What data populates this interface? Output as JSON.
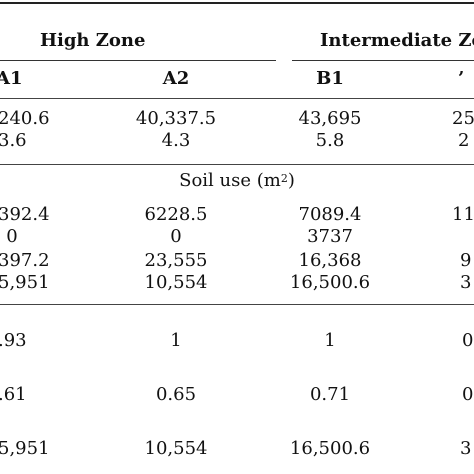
{
  "header": {
    "zone_high": "High Zone",
    "zone_intermediate": "Intermediate Zo",
    "columns": [
      "A1",
      "A2",
      "B1",
      "’"
    ]
  },
  "rows_top": [
    [
      "240.6",
      "40,337.5",
      "43,695",
      "25"
    ],
    [
      "3.6",
      "4.3",
      "5.8",
      "2"
    ]
  ],
  "section": {
    "label_prefix": "Soil use (m",
    "label_sup": "2",
    "label_suffix": ")"
  },
  "rows_soil": [
    [
      "392.4",
      "6228.5",
      "7089.4",
      "11"
    ],
    [
      "0",
      "0",
      "3737",
      ""
    ],
    [
      "397.2",
      "23,555",
      "16,368",
      "9"
    ],
    [
      "5,951",
      "10,554",
      "16,500.6",
      "3"
    ]
  ],
  "rows_bottom": [
    [
      ".93",
      "1",
      "1",
      "0"
    ],
    [
      ".61",
      "0.65",
      "0.71",
      "0"
    ],
    [
      "5,951",
      "10,554",
      "16,500.6",
      "3"
    ]
  ]
}
